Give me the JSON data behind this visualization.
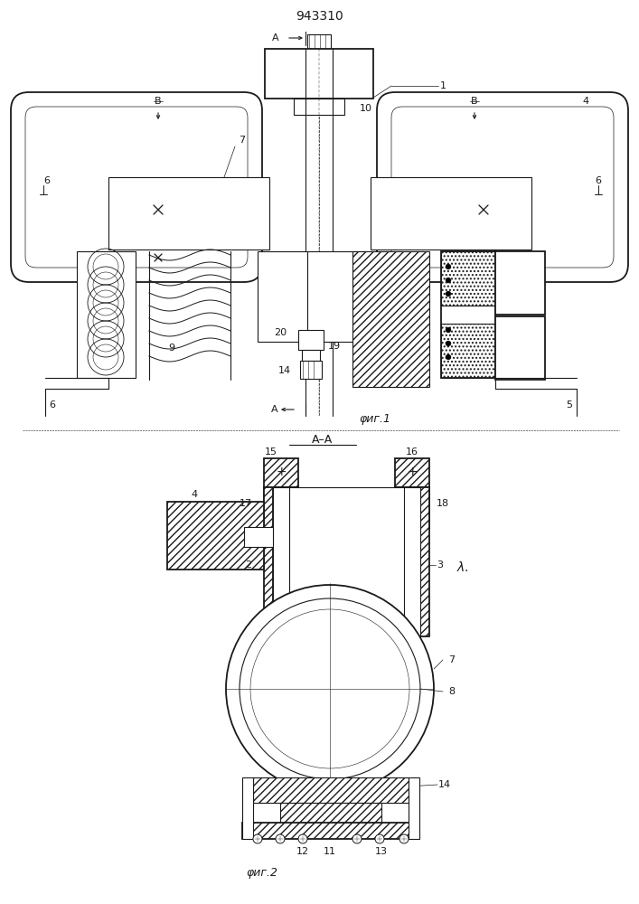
{
  "title": "943310",
  "fig1_label": "φиг.1",
  "fig2_label": "φиг.2",
  "section_label": "A–A",
  "bg_color": "#ffffff",
  "line_color": "#1a1a1a",
  "fig_width": 7.07,
  "fig_height": 10.0,
  "dpi": 100
}
